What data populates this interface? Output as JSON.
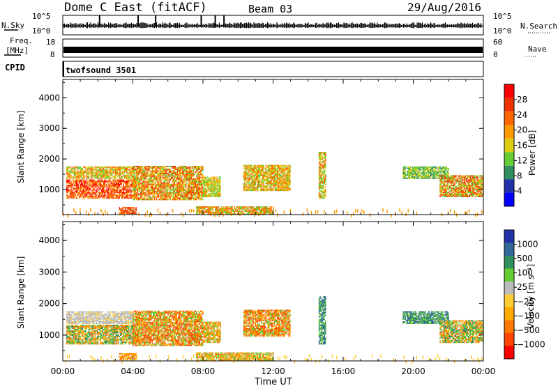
{
  "header": {
    "title": "Dome C East (fitACF)",
    "beam": "Beam 03",
    "date": "29/Aug/2016"
  },
  "strip_panels": {
    "nsky_label": "N.Sky",
    "nsky_ticks": [
      "10^5",
      "10^0"
    ],
    "nsearch_label": "N.Search",
    "nsearch_ticks": [
      "10^5",
      "10^0"
    ],
    "freq_label_1": "Freq.",
    "freq_label_2": "[MHz]",
    "freq_ticks": [
      "18",
      "8"
    ],
    "nave_label": "Nave",
    "nave_ticks": [
      "60",
      "0"
    ],
    "cpid_label": "CPID",
    "cpid_value": "twofsound 3501"
  },
  "colors": {
    "power_scale": [
      "#0000ff",
      "#2233aa",
      "#2f8f5f",
      "#66cc33",
      "#ddcc11",
      "#ff9900",
      "#ff6600",
      "#ee3300",
      "#ff0000"
    ],
    "velocity_scale": [
      "#ff0000",
      "#ff4400",
      "#ff7700",
      "#ffaa00",
      "#ffcc33",
      "#bbbbbb",
      "#66cc33",
      "#2f8f5f",
      "#336699",
      "#2233aa"
    ]
  },
  "chart_data": [
    {
      "type": "heatmap",
      "name": "power-panel",
      "ylabel": "Slant Range [km]",
      "xlabel": "",
      "y_ticks": [
        "1000",
        "2000",
        "3000",
        "4000"
      ],
      "x_ticks": [
        "00:00",
        "04:00",
        "08:00",
        "12:00",
        "16:00",
        "20:00",
        "00:00"
      ],
      "xlim": [
        0,
        24
      ],
      "ylim": [
        180,
        4600
      ],
      "colorbar_label": "Power [dB]",
      "colorbar_ticks": [
        "28",
        "24",
        "20",
        "16",
        "12",
        "8",
        "4"
      ],
      "colorbar_range": [
        0,
        32
      ]
    },
    {
      "type": "heatmap",
      "name": "velocity-panel",
      "ylabel": "Slant Range [km]",
      "xlabel": "Time UT",
      "y_ticks": [
        "1000",
        "2000",
        "3000",
        "4000"
      ],
      "x_ticks": [
        "00:00",
        "04:00",
        "08:00",
        "12:00",
        "16:00",
        "20:00",
        "00:00"
      ],
      "xlim": [
        0,
        24
      ],
      "ylim": [
        180,
        4600
      ],
      "colorbar_label": "Velocity [m s⁻¹]",
      "colorbar_ticks": [
        "1000",
        "500",
        "100",
        "25",
        "−25",
        "−100",
        "−500",
        "−1000"
      ],
      "colorbar_range": [
        -1000,
        1000
      ]
    }
  ]
}
